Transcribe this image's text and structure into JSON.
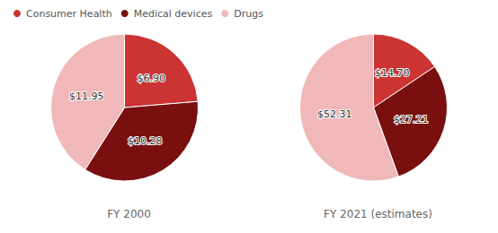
{
  "chart_data": [
    {
      "type": "pie",
      "title": "FY 2000",
      "categories": [
        "Consumer Health",
        "Medical devices",
        "Drugs"
      ],
      "values": [
        6.9,
        10.28,
        11.95
      ],
      "value_labels": [
        "$6.90",
        "$10.28",
        "$11.95"
      ],
      "colors": [
        "#cc3333",
        "#7a0f0f",
        "#f0b8b8"
      ],
      "data_labels": true,
      "legend": "upper left"
    },
    {
      "type": "pie",
      "title": "FY 2021 (estimates)",
      "categories": [
        "Consumer Health",
        "Medical devices",
        "Drugs"
      ],
      "values": [
        14.7,
        27.21,
        52.31
      ],
      "value_labels": [
        "$14.70",
        "$27.21",
        "$52.31"
      ],
      "colors": [
        "#cc3333",
        "#7a0f0f",
        "#f0b8b8"
      ],
      "data_labels": true
    }
  ]
}
